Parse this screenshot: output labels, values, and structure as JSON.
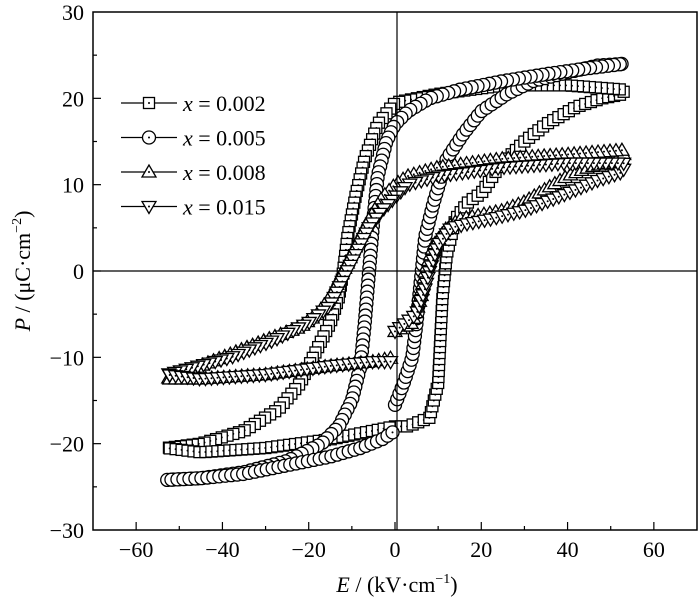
{
  "chart_data": {
    "type": "scatter",
    "title": "",
    "xlabel": {
      "var": "E",
      "rest": " / (kV·cm",
      "sup": "−1",
      "close": ")"
    },
    "ylabel": {
      "var": "P",
      "rest": " / (μC·cm",
      "sup": "−2",
      "close": ")"
    },
    "xlim": [
      -70,
      70
    ],
    "ylim": [
      -30,
      30
    ],
    "xticks": [
      "−60",
      "−40",
      "−20",
      "0",
      "20",
      "40",
      "60"
    ],
    "xtick_values": [
      -60,
      -40,
      -20,
      0,
      20,
      40,
      60
    ],
    "yticks": [
      "30",
      "20",
      "10",
      "0",
      "−10",
      "−20",
      "−30"
    ],
    "ytick_values": [
      30,
      20,
      10,
      0,
      -10,
      -20,
      -30
    ],
    "grid": false,
    "legend_position": "top-left",
    "series": [
      {
        "name": "x = 0.002",
        "label_var": "x",
        "label_rest": " = 0.002",
        "marker": "square",
        "points": [
          [
            0,
            -18
          ],
          [
            3,
            -18
          ],
          [
            8,
            -17
          ],
          [
            10,
            -13
          ],
          [
            10.5,
            -8
          ],
          [
            11,
            -3
          ],
          [
            12,
            2
          ],
          [
            14,
            6
          ],
          [
            17,
            8
          ],
          [
            20,
            9
          ],
          [
            24,
            12
          ],
          [
            30,
            15
          ],
          [
            35,
            17
          ],
          [
            42,
            19
          ],
          [
            48,
            20
          ],
          [
            53,
            20.5
          ],
          [
            53,
            21
          ],
          [
            40,
            21.5
          ],
          [
            25,
            21.5
          ],
          [
            10,
            20.5
          ],
          [
            0,
            19.5
          ],
          [
            -4,
            17
          ],
          [
            -7,
            13
          ],
          [
            -9,
            9
          ],
          [
            -11,
            4
          ],
          [
            -12,
            0
          ],
          [
            -13,
            -3
          ],
          [
            -15,
            -6
          ],
          [
            -17,
            -8
          ],
          [
            -19,
            -10
          ],
          [
            -22,
            -13
          ],
          [
            -27,
            -16
          ],
          [
            -35,
            -18.5
          ],
          [
            -45,
            -20
          ],
          [
            -53,
            -20.5
          ],
          [
            -45,
            -21
          ],
          [
            -30,
            -20.5
          ],
          [
            -15,
            -19.5
          ],
          [
            -5,
            -18.5
          ],
          [
            0,
            -18
          ]
        ]
      },
      {
        "name": "x = 0.005",
        "label_var": "x",
        "label_rest": " = 0.005",
        "marker": "circle",
        "points": [
          [
            0,
            -15.5
          ],
          [
            2,
            -13
          ],
          [
            4,
            -10
          ],
          [
            5,
            -6
          ],
          [
            6,
            -1
          ],
          [
            7,
            4
          ],
          [
            9,
            8
          ],
          [
            12,
            13
          ],
          [
            16,
            16
          ],
          [
            20,
            18.5
          ],
          [
            26,
            20.5
          ],
          [
            32,
            22
          ],
          [
            40,
            23
          ],
          [
            47,
            23.8
          ],
          [
            53,
            24
          ],
          [
            45,
            23.5
          ],
          [
            35,
            22.8
          ],
          [
            25,
            22
          ],
          [
            15,
            21
          ],
          [
            8,
            20
          ],
          [
            3,
            18.5
          ],
          [
            0,
            17
          ],
          [
            -2,
            15
          ],
          [
            -4,
            11
          ],
          [
            -5,
            6
          ],
          [
            -6,
            0
          ],
          [
            -7,
            -6
          ],
          [
            -8,
            -11
          ],
          [
            -10,
            -15
          ],
          [
            -13,
            -18
          ],
          [
            -17,
            -20
          ],
          [
            -25,
            -22
          ],
          [
            -35,
            -23.3
          ],
          [
            -45,
            -24
          ],
          [
            -53,
            -24.2
          ],
          [
            -45,
            -24
          ],
          [
            -35,
            -23.5
          ],
          [
            -25,
            -22.5
          ],
          [
            -15,
            -21.5
          ],
          [
            -8,
            -20.5
          ],
          [
            -3,
            -19.5
          ],
          [
            0,
            -18.5
          ]
        ]
      },
      {
        "name": "x = 0.008",
        "label_var": "x",
        "label_rest": " = 0.008",
        "marker": "triangle-up",
        "points": [
          [
            0,
            -7
          ],
          [
            4,
            -6
          ],
          [
            6,
            -3
          ],
          [
            7,
            0
          ],
          [
            9,
            3
          ],
          [
            12,
            5
          ],
          [
            15,
            6
          ],
          [
            20,
            6.5
          ],
          [
            25,
            7
          ],
          [
            30,
            8
          ],
          [
            35,
            9.5
          ],
          [
            40,
            11
          ],
          [
            45,
            12
          ],
          [
            53,
            13
          ],
          [
            53,
            14
          ],
          [
            40,
            13.5
          ],
          [
            25,
            13
          ],
          [
            10,
            12
          ],
          [
            3,
            11
          ],
          [
            0,
            10
          ],
          [
            -3,
            8.5
          ],
          [
            -6,
            6
          ],
          [
            -9,
            3
          ],
          [
            -12,
            0
          ],
          [
            -15,
            -3
          ],
          [
            -18,
            -5
          ],
          [
            -22,
            -6.5
          ],
          [
            -30,
            -8
          ],
          [
            -40,
            -10
          ],
          [
            -53,
            -12.5
          ],
          [
            -45,
            -12.5
          ],
          [
            -30,
            -12
          ],
          [
            -15,
            -11
          ],
          [
            -5,
            -10.5
          ],
          [
            0,
            -10
          ]
        ]
      },
      {
        "name": "x = 0.015",
        "label_var": "x",
        "label_rest": " = 0.015",
        "marker": "triangle-down",
        "points": [
          [
            0,
            -7
          ],
          [
            5,
            -5
          ],
          [
            7,
            -2
          ],
          [
            8,
            0
          ],
          [
            10,
            3
          ],
          [
            13,
            5
          ],
          [
            17,
            5.5
          ],
          [
            22,
            6
          ],
          [
            30,
            7
          ],
          [
            40,
            9
          ],
          [
            47,
            10.5
          ],
          [
            53,
            11.5
          ],
          [
            53,
            12.5
          ],
          [
            40,
            12.5
          ],
          [
            25,
            12
          ],
          [
            10,
            11
          ],
          [
            3,
            10
          ],
          [
            0,
            8.5
          ],
          [
            -3,
            7
          ],
          [
            -6,
            5
          ],
          [
            -9,
            2
          ],
          [
            -12,
            -1
          ],
          [
            -15,
            -4
          ],
          [
            -20,
            -6
          ],
          [
            -28,
            -8
          ],
          [
            -38,
            -10
          ],
          [
            -53,
            -12
          ],
          [
            -45,
            -12.5
          ],
          [
            -30,
            -12
          ],
          [
            -15,
            -11
          ],
          [
            -5,
            -10.5
          ],
          [
            0,
            -10.5
          ]
        ]
      }
    ]
  }
}
